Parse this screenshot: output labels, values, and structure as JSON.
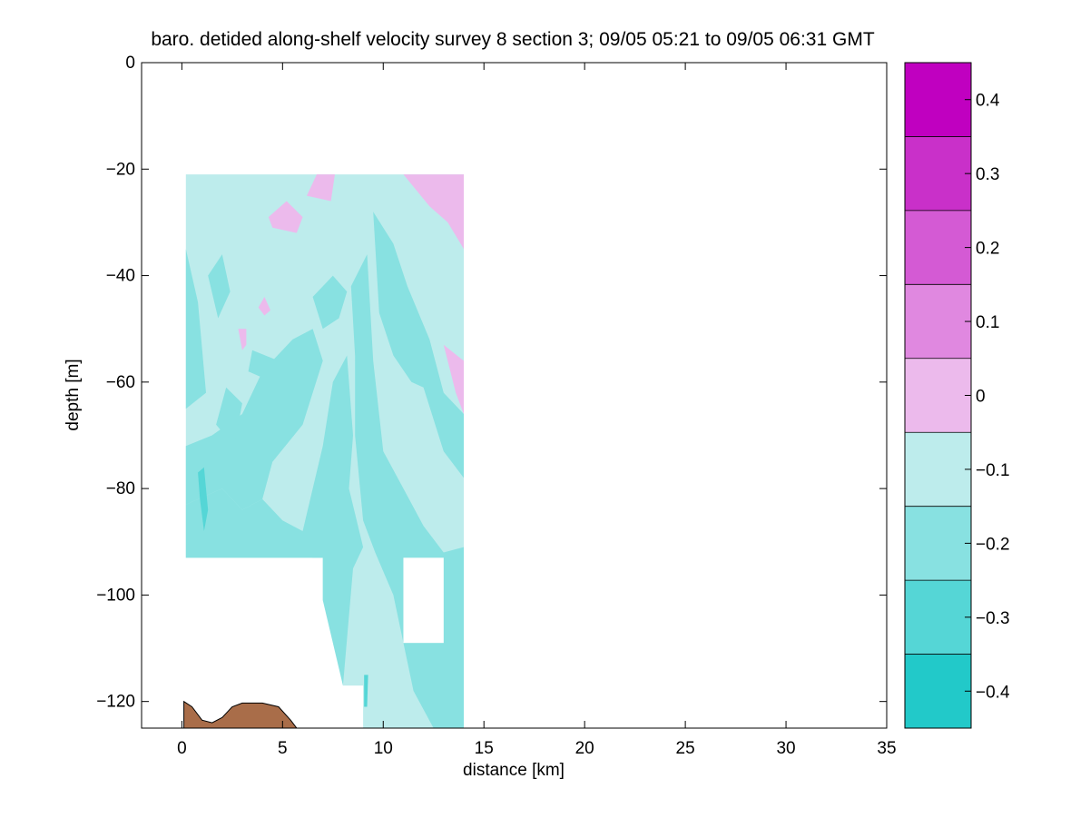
{
  "chart_data": {
    "type": "heatmap",
    "title": "baro. detided along-shelf velocity survey 8 section 3; 09/05 05:21 to 09/05 06:31 GMT",
    "xlabel": "distance [km]",
    "ylabel": "depth [m]",
    "xlim": [
      -2,
      35
    ],
    "ylim": [
      -125,
      0
    ],
    "x_ticks": [
      0,
      5,
      10,
      15,
      20,
      25,
      30,
      35
    ],
    "x_tick_labels": [
      "0",
      "5",
      "10",
      "15",
      "20",
      "25",
      "30",
      "35"
    ],
    "y_ticks": [
      0,
      -20,
      -40,
      -60,
      -80,
      -100,
      -120
    ],
    "y_tick_labels": [
      "0",
      "−20",
      "−40",
      "−60",
      "−80",
      "−100",
      "−120"
    ],
    "colorbar": {
      "limits": [
        -0.45,
        0.45
      ],
      "ticks": [
        0.4,
        0.3,
        0.2,
        0.1,
        0,
        -0.1,
        -0.2,
        -0.3,
        -0.4
      ],
      "tick_labels": [
        "0.4",
        "0.3",
        "0.2",
        "0.1",
        "0",
        "−0.1",
        "−0.2",
        "−0.3",
        "−0.4"
      ],
      "levels": [
        {
          "from": 0.35,
          "to": 0.45,
          "color": "#c000c0"
        },
        {
          "from": 0.25,
          "to": 0.35,
          "color": "#c930c9"
        },
        {
          "from": 0.15,
          "to": 0.25,
          "color": "#d45ad4"
        },
        {
          "from": 0.05,
          "to": 0.15,
          "color": "#e088e0"
        },
        {
          "from": -0.05,
          "to": 0.05,
          "color": "#ecbaec"
        },
        {
          "from": -0.15,
          "to": -0.05,
          "color": "#bdecec"
        },
        {
          "from": -0.25,
          "to": -0.15,
          "color": "#88e1e1"
        },
        {
          "from": -0.35,
          "to": -0.25,
          "color": "#55d6d6"
        },
        {
          "from": -0.45,
          "to": -0.35,
          "color": "#22c9c9"
        },
        {
          "from": -0.55,
          "to": -0.45,
          "color": "#00bebe"
        }
      ]
    },
    "section_outline": [
      [
        0.2,
        -21
      ],
      [
        14,
        -21
      ],
      [
        14,
        -125
      ],
      [
        9,
        -125
      ],
      [
        9,
        -117
      ],
      [
        8,
        -117
      ],
      [
        8,
        -101
      ],
      [
        7,
        -101
      ],
      [
        7,
        -93
      ],
      [
        0.2,
        -93
      ]
    ],
    "missing_blocks": [
      {
        "x": [
          11,
          13
        ],
        "y": [
          -109,
          -93
        ]
      }
    ],
    "base_value": -0.1,
    "regions": [
      {
        "value": -0.2,
        "polygon": [
          [
            0.2,
            -35
          ],
          [
            0.8,
            -45
          ],
          [
            1.2,
            -62
          ],
          [
            0.2,
            -65
          ]
        ]
      },
      {
        "value": -0.2,
        "polygon": [
          [
            0.2,
            -72
          ],
          [
            1.5,
            -70
          ],
          [
            3,
            -66
          ],
          [
            4,
            -58
          ],
          [
            5.5,
            -52
          ],
          [
            6.5,
            -50
          ],
          [
            7,
            -56
          ],
          [
            6,
            -68
          ],
          [
            4.5,
            -75
          ],
          [
            4,
            -82
          ],
          [
            3,
            -84
          ],
          [
            2,
            -80
          ],
          [
            0.2,
            -83
          ]
        ]
      },
      {
        "value": -0.2,
        "polygon": [
          [
            0.2,
            -83
          ],
          [
            2,
            -80
          ],
          [
            3,
            -84
          ],
          [
            4,
            -82
          ],
          [
            5,
            -86
          ],
          [
            6,
            -88
          ],
          [
            7,
            -93
          ],
          [
            0.2,
            -93
          ]
        ]
      },
      {
        "value": -0.2,
        "polygon": [
          [
            6,
            -88
          ],
          [
            7,
            -72
          ],
          [
            7.5,
            -60
          ],
          [
            8.2,
            -55
          ],
          [
            8.5,
            -70
          ],
          [
            8.3,
            -80
          ],
          [
            9,
            -91
          ],
          [
            8.5,
            -95
          ],
          [
            8,
            -117
          ],
          [
            7,
            -101
          ],
          [
            7,
            -93
          ],
          [
            6.5,
            -93
          ]
        ]
      },
      {
        "value": -0.2,
        "polygon": [
          [
            8.4,
            -42
          ],
          [
            9.2,
            -36
          ],
          [
            9.5,
            -56
          ],
          [
            10,
            -73
          ],
          [
            11,
            -80
          ],
          [
            12,
            -87
          ],
          [
            13,
            -92
          ],
          [
            14,
            -91
          ],
          [
            14,
            -125
          ],
          [
            12.5,
            -125
          ],
          [
            11.5,
            -118
          ],
          [
            10.5,
            -100
          ],
          [
            9.6,
            -92
          ],
          [
            9,
            -86
          ],
          [
            8.6,
            -70
          ],
          [
            8.6,
            -55
          ]
        ]
      },
      {
        "value": -0.2,
        "polygon": [
          [
            9.5,
            -28
          ],
          [
            10.5,
            -34
          ],
          [
            11.2,
            -42
          ],
          [
            12.3,
            -52
          ],
          [
            13,
            -62
          ],
          [
            14,
            -66
          ],
          [
            14,
            -78
          ],
          [
            13,
            -73
          ],
          [
            12,
            -61
          ],
          [
            11.4,
            -60
          ],
          [
            10.5,
            -55
          ],
          [
            9.8,
            -47
          ]
        ]
      },
      {
        "value": -0.2,
        "polygon": [
          [
            3.5,
            -54
          ],
          [
            3.3,
            -58
          ],
          [
            4.5,
            -60
          ],
          [
            4.8,
            -56
          ]
        ]
      },
      {
        "value": -0.2,
        "polygon": [
          [
            1.7,
            -68
          ],
          [
            2.2,
            -61
          ],
          [
            3,
            -64
          ],
          [
            2.6,
            -72
          ]
        ]
      },
      {
        "value": -0.2,
        "polygon": [
          [
            1.3,
            -40
          ],
          [
            2,
            -36
          ],
          [
            2.4,
            -43
          ],
          [
            1.8,
            -48
          ]
        ]
      },
      {
        "value": -0.2,
        "polygon": [
          [
            6.5,
            -44
          ],
          [
            7.5,
            -40
          ],
          [
            8.2,
            -43
          ],
          [
            7.8,
            -48
          ],
          [
            7,
            -50
          ]
        ]
      },
      {
        "value": -0.3,
        "polygon": [
          [
            0.8,
            -77
          ],
          [
            1.1,
            -76
          ],
          [
            1.3,
            -84
          ],
          [
            1.1,
            -88
          ],
          [
            0.9,
            -82
          ]
        ]
      },
      {
        "value": -0.3,
        "polygon": [
          [
            9.05,
            -115
          ],
          [
            9.25,
            -115
          ],
          [
            9.2,
            -121
          ],
          [
            9.05,
            -121
          ]
        ]
      },
      {
        "value": 0,
        "polygon": [
          [
            6.2,
            -25
          ],
          [
            6.7,
            -21
          ],
          [
            7.6,
            -21
          ],
          [
            7.4,
            -26
          ]
        ]
      },
      {
        "value": 0,
        "polygon": [
          [
            4.3,
            -29
          ],
          [
            5.2,
            -26
          ],
          [
            6,
            -29
          ],
          [
            5.7,
            -32
          ],
          [
            4.5,
            -31
          ]
        ]
      },
      {
        "value": 0,
        "polygon": [
          [
            11,
            -21
          ],
          [
            14,
            -21
          ],
          [
            14,
            -35
          ],
          [
            13.2,
            -30
          ],
          [
            12.3,
            -27
          ]
        ]
      },
      {
        "value": 0,
        "polygon": [
          [
            13,
            -53
          ],
          [
            14,
            -56
          ],
          [
            14,
            -66
          ],
          [
            13.6,
            -62
          ]
        ]
      },
      {
        "value": 0,
        "polygon": [
          [
            3.8,
            -46
          ],
          [
            4.1,
            -44
          ],
          [
            4.4,
            -46.5
          ],
          [
            4.1,
            -47.5
          ]
        ]
      },
      {
        "value": 0,
        "polygon": [
          [
            2.8,
            -50
          ],
          [
            3.2,
            -50
          ],
          [
            3.2,
            -53
          ],
          [
            3.0,
            -54
          ]
        ]
      }
    ],
    "bathymetry": {
      "color": "#a96d49",
      "depth": [
        [
          0.1,
          -120
        ],
        [
          0.5,
          -121
        ],
        [
          1,
          -123.5
        ],
        [
          1.5,
          -124
        ],
        [
          2,
          -123
        ],
        [
          2.5,
          -121
        ],
        [
          3,
          -120.3
        ],
        [
          4,
          -120.3
        ],
        [
          4.8,
          -121
        ],
        [
          5.4,
          -123.5
        ],
        [
          5.7,
          -125
        ],
        [
          0.1,
          -125
        ]
      ]
    }
  }
}
